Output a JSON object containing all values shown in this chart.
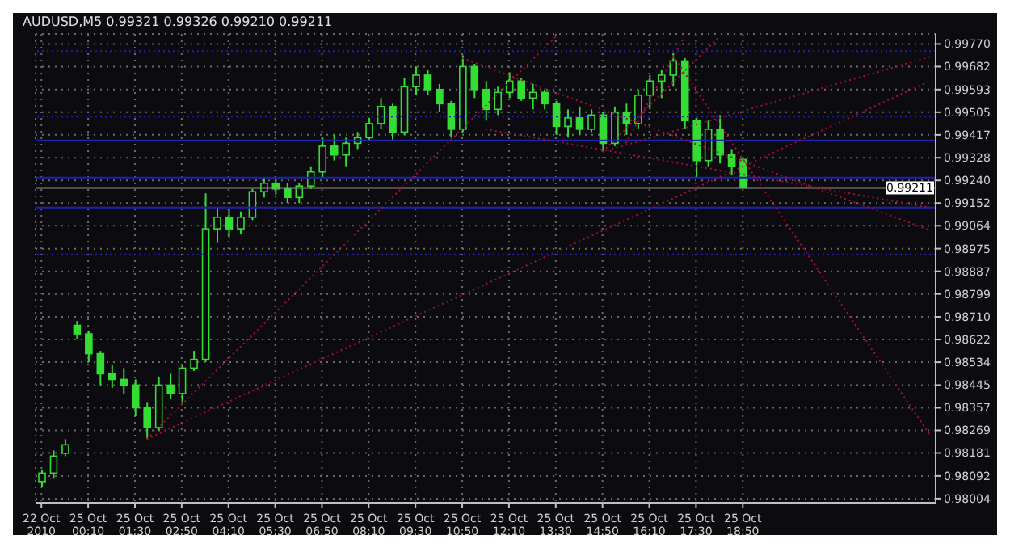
{
  "chart_data": {
    "type": "candlestick",
    "title": "AUDUSD,M5  0.99321 0.99326 0.99210 0.99211",
    "color": "#33dd33",
    "grid": true,
    "categories": [
      "22 Oct 2010",
      null,
      null,
      null,
      "25 Oct 00:10",
      null,
      null,
      null,
      "25 Oct 01:30",
      null,
      null,
      null,
      "25 Oct 02:50",
      null,
      null,
      null,
      "25 Oct 04:10",
      null,
      null,
      null,
      "25 Oct 05:30",
      null,
      null,
      null,
      "25 Oct 06:50",
      null,
      null,
      null,
      "25 Oct 08:10",
      null,
      null,
      null,
      "25 Oct 09:30",
      null,
      null,
      null,
      "25 Oct 10:50",
      null,
      null,
      null,
      "25 Oct 12:10",
      null,
      null,
      null,
      "25 Oct 13:30",
      null,
      null,
      null,
      "25 Oct 14:50",
      null,
      null,
      null,
      "25 Oct 16:10",
      null,
      null,
      null,
      "25 Oct 17:30",
      null,
      null,
      null,
      "25 Oct 18:50",
      null,
      null,
      null,
      null,
      null,
      null,
      null,
      null,
      null,
      null,
      null,
      null,
      null,
      null,
      null,
      null
    ],
    "ohlc": [
      [
        0.9807,
        0.98114,
        0.98048,
        0.98103
      ],
      [
        0.98103,
        0.98191,
        0.98081,
        0.98169
      ],
      [
        0.9818,
        0.98235,
        0.98169,
        0.98213
      ],
      [
        0.98677,
        0.98694,
        0.98622,
        0.98644
      ],
      [
        0.98644,
        0.98655,
        0.98534,
        0.98567
      ],
      [
        0.98567,
        0.98578,
        0.98445,
        0.98489
      ],
      [
        0.98489,
        0.98522,
        0.98434,
        0.98467
      ],
      [
        0.98467,
        0.98511,
        0.98412,
        0.98445
      ],
      [
        0.98445,
        0.98467,
        0.98324,
        0.98357
      ],
      [
        0.98357,
        0.98379,
        0.98235,
        0.9828
      ],
      [
        0.9828,
        0.98478,
        0.98269,
        0.98445
      ],
      [
        0.98445,
        0.98489,
        0.9839,
        0.98412
      ],
      [
        0.98412,
        0.98522,
        0.98379,
        0.98511
      ],
      [
        0.98511,
        0.98578,
        0.985,
        0.98545
      ],
      [
        0.98545,
        0.9919,
        0.98534,
        0.99052
      ],
      [
        0.99052,
        0.99135,
        0.98997,
        0.99097
      ],
      [
        0.99097,
        0.9913,
        0.99019,
        0.99052
      ],
      [
        0.99052,
        0.99119,
        0.9903,
        0.99097
      ],
      [
        0.99097,
        0.99207,
        0.99086,
        0.99196
      ],
      [
        0.99196,
        0.99251,
        0.99174,
        0.99229
      ],
      [
        0.99229,
        0.99251,
        0.99185,
        0.99207
      ],
      [
        0.99207,
        0.99229,
        0.99152,
        0.99174
      ],
      [
        0.99174,
        0.99229,
        0.99152,
        0.99218
      ],
      [
        0.99218,
        0.99295,
        0.99207,
        0.99273
      ],
      [
        0.99273,
        0.99406,
        0.99251,
        0.99373
      ],
      [
        0.99373,
        0.99417,
        0.99317,
        0.99339
      ],
      [
        0.99339,
        0.99406,
        0.99295,
        0.99384
      ],
      [
        0.99384,
        0.99428,
        0.99362,
        0.99406
      ],
      [
        0.99406,
        0.99483,
        0.99395,
        0.99461
      ],
      [
        0.99461,
        0.9956,
        0.99439,
        0.99527
      ],
      [
        0.99527,
        0.99538,
        0.99395,
        0.99428
      ],
      [
        0.99428,
        0.99638,
        0.99417,
        0.99604
      ],
      [
        0.99604,
        0.99682,
        0.99571,
        0.99649
      ],
      [
        0.99649,
        0.99671,
        0.99571,
        0.99593
      ],
      [
        0.99593,
        0.99615,
        0.99505,
        0.99538
      ],
      [
        0.99538,
        0.99549,
        0.99406,
        0.99439
      ],
      [
        0.99439,
        0.99726,
        0.99428,
        0.99682
      ],
      [
        0.99682,
        0.99693,
        0.9956,
        0.99593
      ],
      [
        0.99593,
        0.99626,
        0.99472,
        0.99516
      ],
      [
        0.99516,
        0.99604,
        0.99494,
        0.99582
      ],
      [
        0.99582,
        0.9966,
        0.9956,
        0.99626
      ],
      [
        0.99626,
        0.99638,
        0.99549,
        0.9956
      ],
      [
        0.9956,
        0.99615,
        0.99516,
        0.99582
      ],
      [
        0.99582,
        0.99593,
        0.99516,
        0.99538
      ],
      [
        0.99538,
        0.99549,
        0.99417,
        0.9945
      ],
      [
        0.9945,
        0.99516,
        0.99406,
        0.99483
      ],
      [
        0.99483,
        0.99527,
        0.99417,
        0.99439
      ],
      [
        0.99439,
        0.99516,
        0.99428,
        0.99494
      ],
      [
        0.99494,
        0.99505,
        0.99351,
        0.99384
      ],
      [
        0.99384,
        0.99527,
        0.99373,
        0.99505
      ],
      [
        0.99505,
        0.99538,
        0.99417,
        0.99461
      ],
      [
        0.99461,
        0.99593,
        0.99439,
        0.99571
      ],
      [
        0.99571,
        0.99649,
        0.99516,
        0.99626
      ],
      [
        0.99626,
        0.99671,
        0.9956,
        0.99649
      ],
      [
        0.99649,
        0.99737,
        0.99604,
        0.99704
      ],
      [
        0.99704,
        0.99715,
        0.99439,
        0.99472
      ],
      [
        0.99472,
        0.99483,
        0.99251,
        0.99317
      ],
      [
        0.99317,
        0.99472,
        0.99295,
        0.99439
      ],
      [
        0.99439,
        0.99494,
        0.99306,
        0.99339
      ],
      [
        0.99339,
        0.99362,
        0.99262,
        0.99295
      ],
      [
        0.99321,
        0.99326,
        0.9921,
        0.99211
      ],
      null,
      null,
      null,
      null,
      null,
      null,
      null,
      null,
      null,
      null,
      null,
      null,
      null,
      null,
      null,
      null
    ],
    "ylim": [
      0.97988,
      0.99809
    ],
    "yticks": [
      0.98004,
      0.98092,
      0.98181,
      0.98269,
      0.98357,
      0.98445,
      0.98534,
      0.98622,
      {
        "value": 0.9871,
        "label": "0.98710"
      },
      0.98799,
      0.98887,
      0.98975,
      0.99064,
      0.99152,
      {
        "value": 0.9924,
        "label": "0.99240"
      },
      0.99328,
      0.99417,
      0.99505,
      0.99593,
      0.99682,
      {
        "value": 0.9977,
        "label": "0.99770"
      }
    ],
    "series": [
      {
        "type": "line",
        "color": "#a0103a",
        "line_style": "dotted",
        "values": [
          null,
          null,
          null,
          null,
          null,
          null,
          null,
          null,
          null,
          0.98235,
          null,
          null,
          null,
          null,
          null,
          null,
          null,
          null,
          null,
          null,
          null,
          null,
          null,
          null,
          null,
          null,
          null,
          null,
          null,
          null,
          null,
          null,
          null,
          null,
          null,
          null,
          null,
          null,
          null,
          null,
          null,
          null,
          null,
          null,
          null,
          null,
          null,
          null,
          null,
          null,
          null,
          null,
          null,
          null,
          null,
          null,
          null,
          null,
          null,
          null,
          null,
          null,
          null,
          null,
          null,
          null,
          null,
          null,
          null,
          null,
          null,
          null,
          null,
          null,
          null,
          null,
          0.99626
        ]
      },
      {
        "type": "line",
        "color": "#a0103a",
        "line_style": "dotted",
        "values": [
          null,
          null,
          null,
          null,
          null,
          null,
          null,
          null,
          null,
          0.98235,
          null,
          null,
          null,
          null,
          null,
          null,
          null,
          null,
          null,
          null,
          null,
          null,
          null,
          null,
          null,
          null,
          null,
          null,
          null,
          null,
          null,
          null,
          null,
          null,
          null,
          null,
          null,
          null,
          null,
          null,
          null,
          null,
          null,
          null,
          0.99798,
          null,
          null,
          null,
          null,
          null,
          null,
          null,
          null,
          null,
          null,
          null,
          null,
          null,
          null,
          null,
          null,
          null,
          null,
          null,
          null,
          null,
          null,
          null,
          null,
          null,
          null,
          null,
          null,
          null,
          null,
          null,
          null
        ]
      },
      {
        "type": "line",
        "color": "#a0103a",
        "line_style": "dotted",
        "values": [
          null,
          null,
          null,
          null,
          null,
          null,
          null,
          null,
          null,
          null,
          null,
          null,
          null,
          null,
          null,
          null,
          null,
          null,
          null,
          null,
          null,
          null,
          null,
          null,
          null,
          null,
          null,
          null,
          null,
          null,
          null,
          null,
          null,
          null,
          null,
          null,
          0.99715,
          null,
          null,
          null,
          null,
          null,
          null,
          null,
          null,
          null,
          null,
          null,
          null,
          null,
          null,
          null,
          null,
          null,
          null,
          null,
          null,
          null,
          null,
          null,
          null,
          null,
          null,
          null,
          null,
          null,
          null,
          null,
          null,
          null,
          null,
          null,
          null,
          null,
          null,
          null,
          0.99047
        ]
      },
      {
        "type": "line",
        "color": "#a0103a",
        "line_style": "dotted",
        "values": [
          null,
          null,
          null,
          null,
          null,
          null,
          null,
          null,
          null,
          null,
          null,
          null,
          null,
          null,
          null,
          null,
          null,
          null,
          null,
          null,
          null,
          null,
          null,
          null,
          null,
          null,
          null,
          null,
          null,
          null,
          null,
          null,
          null,
          null,
          null,
          null,
          null,
          null,
          0.99439,
          null,
          null,
          null,
          null,
          null,
          null,
          null,
          null,
          null,
          null,
          null,
          null,
          null,
          null,
          null,
          null,
          null,
          null,
          null,
          null,
          null,
          null,
          null,
          null,
          null,
          null,
          null,
          null,
          null,
          null,
          null,
          null,
          null,
          null,
          null,
          null,
          null,
          0.99135
        ]
      },
      {
        "type": "line",
        "color": "#a0103a",
        "line_style": "dotted",
        "values": [
          null,
          null,
          null,
          null,
          null,
          null,
          null,
          null,
          null,
          null,
          null,
          null,
          null,
          null,
          null,
          null,
          null,
          null,
          null,
          null,
          null,
          null,
          null,
          null,
          null,
          null,
          null,
          null,
          null,
          null,
          null,
          null,
          null,
          null,
          null,
          null,
          null,
          null,
          null,
          null,
          null,
          null,
          null,
          null,
          null,
          null,
          null,
          null,
          0.99351,
          null,
          null,
          null,
          null,
          null,
          null,
          null,
          null,
          null,
          null,
          null,
          null,
          null,
          null,
          null,
          null,
          null,
          null,
          null,
          null,
          null,
          null,
          null,
          null,
          null,
          null,
          null,
          0.9972
        ]
      },
      {
        "type": "line",
        "color": "#a0103a",
        "line_style": "dotted",
        "values": [
          null,
          null,
          null,
          null,
          null,
          null,
          null,
          null,
          null,
          null,
          null,
          null,
          null,
          null,
          null,
          null,
          null,
          null,
          null,
          null,
          null,
          null,
          null,
          null,
          null,
          null,
          null,
          null,
          null,
          null,
          null,
          null,
          null,
          null,
          null,
          null,
          null,
          null,
          null,
          null,
          null,
          null,
          null,
          null,
          null,
          null,
          null,
          null,
          null,
          null,
          null,
          null,
          null,
          null,
          0.99726,
          null,
          null,
          null,
          null,
          null,
          null,
          null,
          null,
          null,
          null,
          null,
          null,
          null,
          null,
          null,
          null,
          null,
          null,
          null,
          null,
          null,
          0.98252
        ]
      },
      {
        "type": "line",
        "color": "#a0103a",
        "line_style": "dotted",
        "values": [
          null,
          null,
          null,
          null,
          null,
          null,
          null,
          null,
          null,
          null,
          null,
          null,
          null,
          null,
          null,
          null,
          null,
          null,
          null,
          null,
          null,
          null,
          null,
          null,
          null,
          null,
          null,
          null,
          null,
          null,
          null,
          null,
          null,
          null,
          null,
          null,
          null,
          null,
          null,
          null,
          null,
          null,
          null,
          null,
          null,
          null,
          null,
          null,
          null,
          null,
          0.99384,
          null,
          null,
          null,
          null,
          0.99798,
          null,
          null,
          null,
          null,
          null,
          null,
          null,
          null,
          null,
          null,
          null,
          null,
          null,
          null,
          null,
          null,
          null,
          null,
          null,
          null,
          null
        ]
      },
      {
        "type": "line",
        "color": "#a0103a",
        "line_style": "dotted",
        "values": [
          null,
          null,
          null,
          null,
          null,
          null,
          null,
          null,
          null,
          null,
          null,
          null,
          null,
          null,
          null,
          null,
          null,
          null,
          null,
          null,
          null,
          null,
          null,
          null,
          null,
          null,
          null,
          null,
          null,
          null,
          null,
          null,
          null,
          null,
          null,
          null,
          null,
          null,
          null,
          null,
          null,
          null,
          null,
          null,
          null,
          null,
          null,
          null,
          0.99351,
          null,
          null,
          null,
          null,
          null,
          null,
          null,
          null,
          null,
          0.99798,
          null,
          null,
          null,
          null,
          null,
          null,
          null,
          null,
          null,
          null,
          null,
          null,
          null,
          null,
          null,
          null,
          null,
          null
        ]
      }
    ],
    "ref_lines": [
      {
        "axis": "y",
        "value": 0.99742,
        "color": "#2020b0",
        "line_style": "dotted"
      },
      {
        "axis": "y",
        "value": 0.99488,
        "color": "#2020b0",
        "line_style": "dotted"
      },
      {
        "axis": "y",
        "value": 0.99395,
        "color": "#2020b0",
        "line_style": "solid"
      },
      {
        "axis": "y",
        "value": 0.99251,
        "color": "#2020b0",
        "line_style": "solid"
      },
      {
        "axis": "y",
        "value": 0.99135,
        "color": "#2020b0",
        "line_style": "solid"
      },
      {
        "axis": "y",
        "value": 0.98953,
        "color": "#2020b0",
        "line_style": "dotted"
      },
      {
        "axis": "y",
        "value": 0.99211,
        "color": "#909090",
        "line_style": "solid",
        "label": "0.99211"
      }
    ]
  }
}
